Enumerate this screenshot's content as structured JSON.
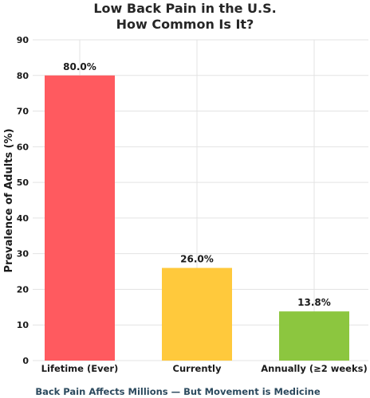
{
  "chart_data": {
    "type": "bar",
    "title_line1": "Low Back Pain in the U.S.",
    "title_line2": "How Common Is It?",
    "ylabel": "Prevalence of Adults (%)",
    "xlabel": "",
    "categories": [
      "Lifetime (Ever)",
      "Currently",
      "Annually (≥2 weeks)"
    ],
    "values": [
      80.0,
      26.0,
      13.8
    ],
    "value_labels": [
      "80.0%",
      "26.0%",
      "13.8%"
    ],
    "colors": [
      "#ff5a5f",
      "#ffc93c",
      "#8cc63f"
    ],
    "ylim": [
      0,
      90
    ],
    "yticks": [
      "0",
      "10",
      "20",
      "30",
      "40",
      "50",
      "60",
      "70",
      "80",
      "90"
    ],
    "grid": true,
    "footer": "Back Pain Affects Millions — But Movement is Medicine"
  }
}
